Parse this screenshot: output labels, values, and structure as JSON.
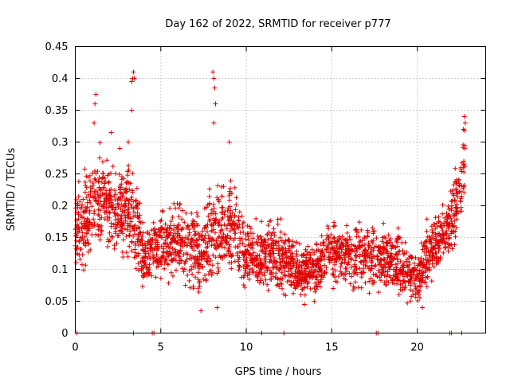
{
  "chart_data": {
    "type": "scatter",
    "title": "Day 162 of 2022, SRMTID for receiver p777",
    "xlabel": "GPS time / hours",
    "ylabel": "SRMTID / TECUs",
    "xlim": [
      0,
      24
    ],
    "ylim": [
      0,
      0.45
    ],
    "grid": true,
    "marker": "+",
    "marker_color": "#e00000",
    "xticks": [
      0,
      5,
      10,
      15,
      20
    ],
    "xtick_labels": [
      "0",
      "5",
      "10",
      "15",
      "20"
    ],
    "yticks": [
      0,
      0.05,
      0.1,
      0.15,
      0.2,
      0.25,
      0.3,
      0.35,
      0.4,
      0.45
    ],
    "ytick_labels": [
      "0",
      "0.05",
      "0.1",
      "0.15",
      "0.2",
      "0.25",
      "0.3",
      "0.35",
      "0.4",
      "0.45"
    ],
    "zero_points_hours": [
      0.1,
      3.4,
      4.5,
      4.6,
      10.9,
      12.2,
      17.6,
      17.7,
      21.9,
      22.0,
      22.6
    ],
    "envelope": [
      {
        "x": 0.0,
        "mean": 0.16,
        "spread": 0.05
      },
      {
        "x": 0.5,
        "mean": 0.17,
        "spread": 0.06
      },
      {
        "x": 1.0,
        "mean": 0.2,
        "spread": 0.07
      },
      {
        "x": 1.5,
        "mean": 0.21,
        "spread": 0.06
      },
      {
        "x": 2.0,
        "mean": 0.2,
        "spread": 0.05
      },
      {
        "x": 2.5,
        "mean": 0.19,
        "spread": 0.05
      },
      {
        "x": 3.0,
        "mean": 0.2,
        "spread": 0.06
      },
      {
        "x": 3.5,
        "mean": 0.17,
        "spread": 0.06
      },
      {
        "x": 4.0,
        "mean": 0.12,
        "spread": 0.04
      },
      {
        "x": 4.5,
        "mean": 0.13,
        "spread": 0.04
      },
      {
        "x": 5.0,
        "mean": 0.14,
        "spread": 0.04
      },
      {
        "x": 6.0,
        "mean": 0.14,
        "spread": 0.05
      },
      {
        "x": 7.0,
        "mean": 0.13,
        "spread": 0.05
      },
      {
        "x": 7.5,
        "mean": 0.12,
        "spread": 0.05
      },
      {
        "x": 8.0,
        "mean": 0.15,
        "spread": 0.06
      },
      {
        "x": 9.0,
        "mean": 0.17,
        "spread": 0.06
      },
      {
        "x": 10.0,
        "mean": 0.12,
        "spread": 0.04
      },
      {
        "x": 11.0,
        "mean": 0.12,
        "spread": 0.04
      },
      {
        "x": 12.0,
        "mean": 0.12,
        "spread": 0.04
      },
      {
        "x": 13.0,
        "mean": 0.1,
        "spread": 0.03
      },
      {
        "x": 14.0,
        "mean": 0.095,
        "spread": 0.03
      },
      {
        "x": 15.0,
        "mean": 0.13,
        "spread": 0.04
      },
      {
        "x": 16.0,
        "mean": 0.12,
        "spread": 0.04
      },
      {
        "x": 17.0,
        "mean": 0.12,
        "spread": 0.04
      },
      {
        "x": 18.0,
        "mean": 0.12,
        "spread": 0.04
      },
      {
        "x": 19.0,
        "mean": 0.11,
        "spread": 0.04
      },
      {
        "x": 20.0,
        "mean": 0.08,
        "spread": 0.025
      },
      {
        "x": 20.5,
        "mean": 0.12,
        "spread": 0.04
      },
      {
        "x": 21.0,
        "mean": 0.14,
        "spread": 0.04
      },
      {
        "x": 22.0,
        "mean": 0.17,
        "spread": 0.04
      },
      {
        "x": 22.5,
        "mean": 0.23,
        "spread": 0.05
      },
      {
        "x": 22.8,
        "mean": 0.27,
        "spread": 0.05
      }
    ],
    "peaks": [
      {
        "x": 1.2,
        "y": 0.375
      },
      {
        "x": 1.15,
        "y": 0.36
      },
      {
        "x": 1.1,
        "y": 0.33
      },
      {
        "x": 3.1,
        "y": 0.3
      },
      {
        "x": 3.3,
        "y": 0.395
      },
      {
        "x": 3.35,
        "y": 0.4
      },
      {
        "x": 3.4,
        "y": 0.41
      },
      {
        "x": 3.45,
        "y": 0.4
      },
      {
        "x": 3.3,
        "y": 0.35
      },
      {
        "x": 8.05,
        "y": 0.41
      },
      {
        "x": 8.1,
        "y": 0.4
      },
      {
        "x": 8.15,
        "y": 0.385
      },
      {
        "x": 8.2,
        "y": 0.36
      },
      {
        "x": 8.1,
        "y": 0.33
      },
      {
        "x": 9.0,
        "y": 0.3
      },
      {
        "x": 2.1,
        "y": 0.315
      },
      {
        "x": 2.6,
        "y": 0.29
      },
      {
        "x": 22.75,
        "y": 0.34
      },
      {
        "x": 22.8,
        "y": 0.33
      },
      {
        "x": 22.7,
        "y": 0.32
      },
      {
        "x": 7.35,
        "y": 0.035
      },
      {
        "x": 8.3,
        "y": 0.04
      },
      {
        "x": 20.3,
        "y": 0.04
      },
      {
        "x": 13.4,
        "y": 0.045
      }
    ]
  }
}
